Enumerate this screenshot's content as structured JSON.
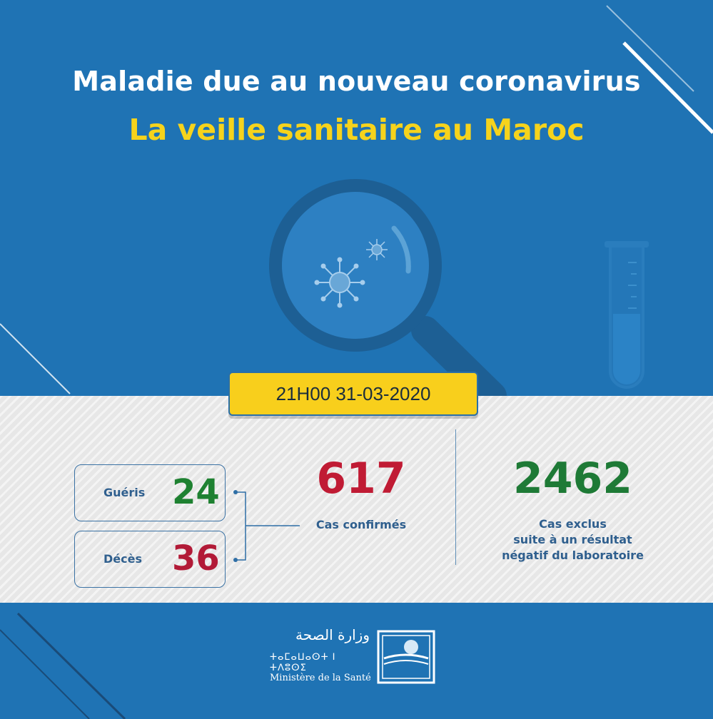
{
  "header": {
    "title_line1": "Maladie due au nouveau coronavirus",
    "title_line2": "La veille sanitaire au Maroc"
  },
  "date_label": "21H00  31-03-2020",
  "stats": {
    "recovered": {
      "label": "Guéris",
      "value": "24"
    },
    "deaths": {
      "label": "Décès",
      "value": "36"
    },
    "confirmed": {
      "label": "Cas confirmés",
      "value": "617"
    },
    "excluded": {
      "value": "2462",
      "label_lines": [
        "Cas exclus",
        "suite à un résultat",
        "négatif du laboratoire"
      ]
    }
  },
  "ministry": {
    "name_ar": "وزارة الصحة",
    "name_tifinagh": "ⵜⴰⵎⴰⵡⴰⵙⵜ ⵏ ⵜⴷⵓⵙⵉ",
    "name_fr": "Ministère de la Santé"
  },
  "colors": {
    "background_blue": "#1f73b4",
    "title_yellow": "#f6d31c",
    "date_box_yellow": "#f8cf1c",
    "recovered_green": "#1e8131",
    "death_red": "#b21a37",
    "confirmed_red": "#c01b34",
    "excluded_green": "#1e7a36",
    "label_blue": "#2f5f8e"
  },
  "icons": [
    "magnifying-glass-icon",
    "virus-icon",
    "test-tube-icon",
    "ministry-logo-icon"
  ]
}
